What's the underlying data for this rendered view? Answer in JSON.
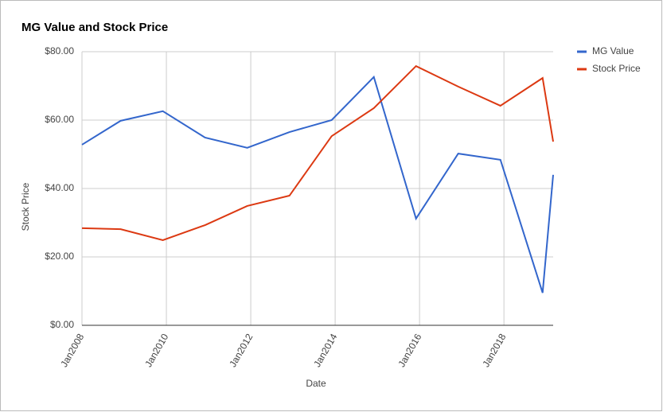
{
  "chart_data": {
    "type": "line",
    "title": "MG Value and Stock Price",
    "x_label": "Date",
    "y_label": "Stock Price",
    "x": [
      "2008-01",
      "2008-12",
      "2009-12",
      "2010-12",
      "2011-12",
      "2012-12",
      "2013-12",
      "2014-12",
      "2015-12",
      "2016-12",
      "2017-12",
      "2018-12",
      "2019-03"
    ],
    "series": [
      {
        "name": "MG Value",
        "color": "#3366cc",
        "values": [
          52.8,
          59.8,
          62.6,
          54.9,
          51.9,
          56.5,
          60.0,
          72.6,
          31.2,
          50.2,
          48.4,
          9.5,
          44.0
        ]
      },
      {
        "name": "Stock Price",
        "color": "#dc3912",
        "values": [
          28.4,
          28.1,
          24.9,
          29.3,
          34.9,
          37.9,
          55.3,
          63.5,
          75.8,
          69.8,
          64.2,
          72.3,
          53.7
        ]
      }
    ],
    "xlim": [
      "2008-01",
      "2019-03"
    ],
    "xticks": [
      {
        "value": "2008-01",
        "label": "Jan2008"
      },
      {
        "value": "2010-01",
        "label": "Jan2010"
      },
      {
        "value": "2012-01",
        "label": "Jan2012"
      },
      {
        "value": "2014-01",
        "label": "Jan2014"
      },
      {
        "value": "2016-01",
        "label": "Jan2016"
      },
      {
        "value": "2018-01",
        "label": "Jan2018"
      }
    ],
    "ylim": [
      0,
      80
    ],
    "yticks": [
      {
        "value": 0,
        "label": "$0.00"
      },
      {
        "value": 20,
        "label": "$20.00"
      },
      {
        "value": 40,
        "label": "$40.00"
      },
      {
        "value": 60,
        "label": "$60.00"
      },
      {
        "value": 80,
        "label": "$80.00"
      }
    ],
    "grid": true,
    "legend": "right"
  }
}
